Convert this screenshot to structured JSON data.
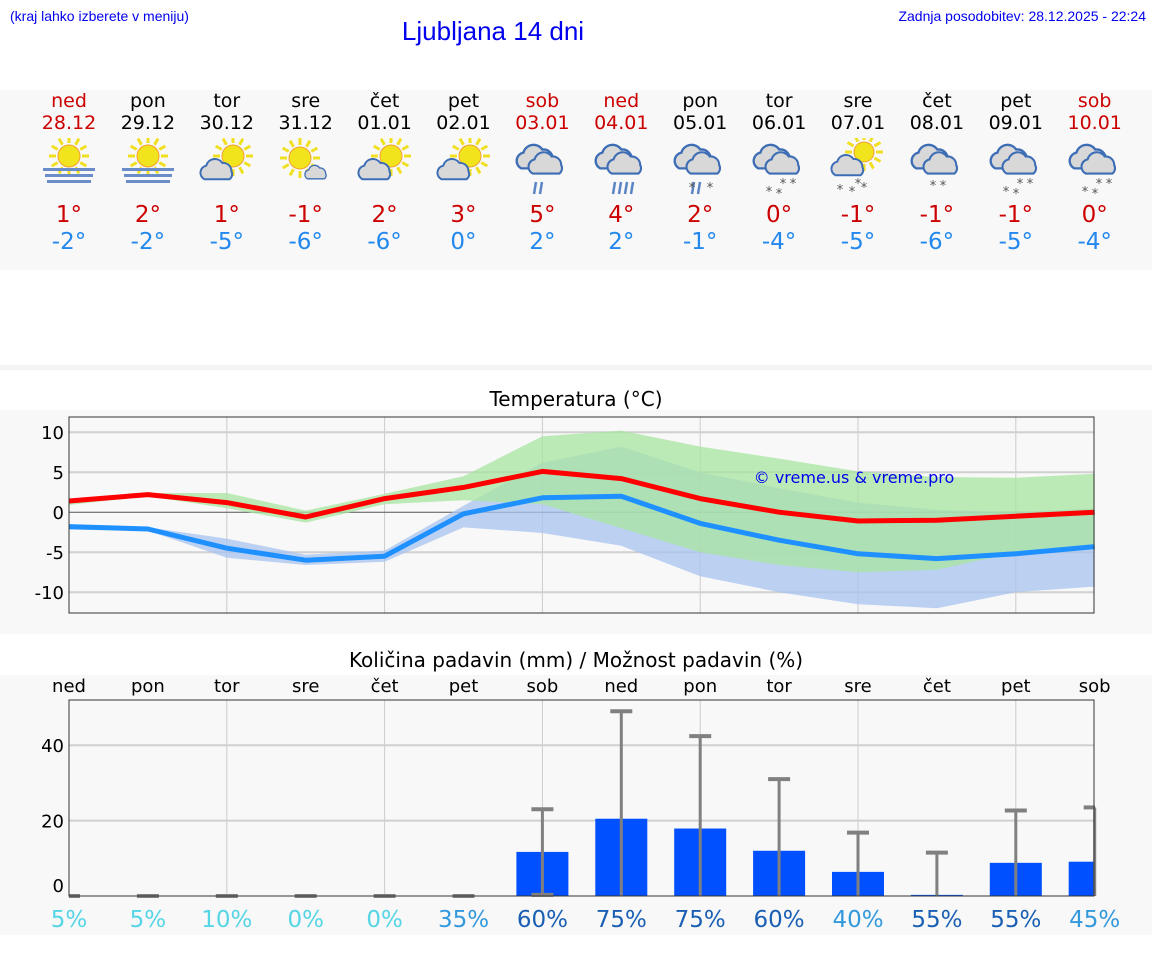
{
  "header": {
    "hint": "(kraj lahko izberete v meniju)",
    "title": "Ljubljana 14 dni",
    "updated": "Zadnja posodobitev: 28.12.2025 - 22:24"
  },
  "days": [
    {
      "name": "ned",
      "date": "28.12",
      "weekend": true,
      "icon": "sun-fog",
      "max": "1°",
      "min": "-2°"
    },
    {
      "name": "pon",
      "date": "29.12",
      "weekend": false,
      "icon": "sun-fog",
      "max": "2°",
      "min": "-2°"
    },
    {
      "name": "tor",
      "date": "30.12",
      "weekend": false,
      "icon": "partly-cloudy",
      "max": "1°",
      "min": "-5°"
    },
    {
      "name": "sre",
      "date": "31.12",
      "weekend": false,
      "icon": "mostly-sunny",
      "max": "-1°",
      "min": "-6°"
    },
    {
      "name": "čet",
      "date": "01.01",
      "weekend": false,
      "icon": "partly-cloudy",
      "max": "2°",
      "min": "-6°"
    },
    {
      "name": "pet",
      "date": "02.01",
      "weekend": false,
      "icon": "partly-cloudy",
      "max": "3°",
      "min": "0°"
    },
    {
      "name": "sob",
      "date": "03.01",
      "weekend": true,
      "icon": "cloud-light-rain",
      "max": "5°",
      "min": "2°"
    },
    {
      "name": "ned",
      "date": "04.01",
      "weekend": true,
      "icon": "cloud-rain",
      "max": "4°",
      "min": "2°"
    },
    {
      "name": "pon",
      "date": "05.01",
      "weekend": false,
      "icon": "cloud-sleet",
      "max": "2°",
      "min": "-1°"
    },
    {
      "name": "tor",
      "date": "06.01",
      "weekend": false,
      "icon": "cloud-snow",
      "max": "0°",
      "min": "-4°"
    },
    {
      "name": "sre",
      "date": "07.01",
      "weekend": false,
      "icon": "sun-cloud-snow",
      "max": "-1°",
      "min": "-5°"
    },
    {
      "name": "čet",
      "date": "08.01",
      "weekend": false,
      "icon": "cloud-light-snow",
      "max": "-1°",
      "min": "-6°"
    },
    {
      "name": "pet",
      "date": "09.01",
      "weekend": false,
      "icon": "cloud-snow",
      "max": "-1°",
      "min": "-5°"
    },
    {
      "name": "sob",
      "date": "10.01",
      "weekend": true,
      "icon": "cloud-snow",
      "max": "0°",
      "min": "-4°"
    }
  ],
  "colors": {
    "weekend": "#cc0000",
    "max": "#cc0000",
    "min": "#2288ee",
    "max_line": "#ff0000",
    "min_line": "#1e90ff",
    "max_band": "#a8e6a0",
    "min_band": "#a8c4f0",
    "bar": "#0050ff",
    "error": "#808080",
    "link": "#0000ee"
  },
  "chart_data": [
    {
      "type": "line",
      "title": "Temperatura (°C)",
      "watermark": "© vreme.us & vreme.pro",
      "ylim": [
        -12.6,
        11.9
      ],
      "yticks": [
        -10,
        -5,
        0,
        5,
        10
      ],
      "grid": true,
      "categories": [
        "28.12",
        "29.12",
        "30.12",
        "31.12",
        "01.01",
        "02.01",
        "03.01",
        "04.01",
        "05.01",
        "06.01",
        "07.01",
        "08.01",
        "09.01",
        "10.01"
      ],
      "series": [
        {
          "key": "max",
          "values": [
            1.4,
            2.2,
            1.2,
            -0.6,
            1.7,
            3.1,
            5.1,
            4.2,
            1.7,
            0,
            -1.1,
            -1.0,
            -0.5,
            0
          ],
          "band_high": [
            1.5,
            2.4,
            2.4,
            0.2,
            2.3,
            4.5,
            9.5,
            10.2,
            8.2,
            6.7,
            5.1,
            4.4,
            4.3,
            4.8
          ],
          "band_low": [
            0.9,
            2.0,
            0.5,
            -1.3,
            1.0,
            1.5,
            1.0,
            -2,
            -5,
            -6.6,
            -7.5,
            -7.2,
            -5,
            -4.6
          ]
        },
        {
          "key": "min",
          "values": [
            -1.8,
            -2.1,
            -4.5,
            -6.0,
            -5.5,
            -0.2,
            1.8,
            2.0,
            -1.4,
            -3.5,
            -5.2,
            -5.8,
            -5.2,
            -4.3
          ],
          "band_high": [
            -1.6,
            -1.9,
            -3.3,
            -5.3,
            -4.8,
            0.8,
            6.2,
            8.2,
            5.0,
            3.0,
            1.2,
            0.3,
            0,
            0.5
          ],
          "band_low": [
            -2.2,
            -2.3,
            -5.7,
            -6.6,
            -6.2,
            -1.9,
            -2.6,
            -4.2,
            -8,
            -10,
            -11.5,
            -12,
            -10,
            -9.3
          ]
        }
      ]
    },
    {
      "type": "bar",
      "title": "Količina padavin (mm) / Možnost padavin (%)",
      "ylim": [
        0,
        52
      ],
      "yticks": [
        0,
        20,
        40
      ],
      "grid": true,
      "categories": [
        "ned",
        "pon",
        "tor",
        "sre",
        "čet",
        "pet",
        "sob",
        "ned",
        "pon",
        "tor",
        "sre",
        "čet",
        "pet",
        "sob"
      ],
      "values": [
        0,
        0,
        0,
        0,
        0,
        0,
        11.7,
        20.5,
        17.9,
        12,
        6.4,
        0.3,
        8.8,
        9.1
      ],
      "error_high": [
        0,
        0,
        0,
        0,
        0,
        0,
        23,
        49,
        42.4,
        31,
        16.8,
        11.5,
        22.7,
        23.5
      ],
      "error_low": [
        0,
        0,
        0,
        0,
        0,
        0,
        0.3,
        0,
        0,
        0,
        0,
        0,
        0,
        0
      ],
      "probability": [
        "5%",
        "5%",
        "10%",
        "0%",
        "0%",
        "35%",
        "60%",
        "75%",
        "75%",
        "60%",
        "40%",
        "55%",
        "55%",
        "45%"
      ],
      "probability_colors": [
        "#55d5e5",
        "#55d5e5",
        "#55d5e5",
        "#55d5e5",
        "#55d5e5",
        "#3399dd",
        "#1a5fb4",
        "#1a5fb4",
        "#1a5fb4",
        "#1a5fb4",
        "#3399dd",
        "#1a5fb4",
        "#1a5fb4",
        "#3399dd"
      ]
    }
  ]
}
